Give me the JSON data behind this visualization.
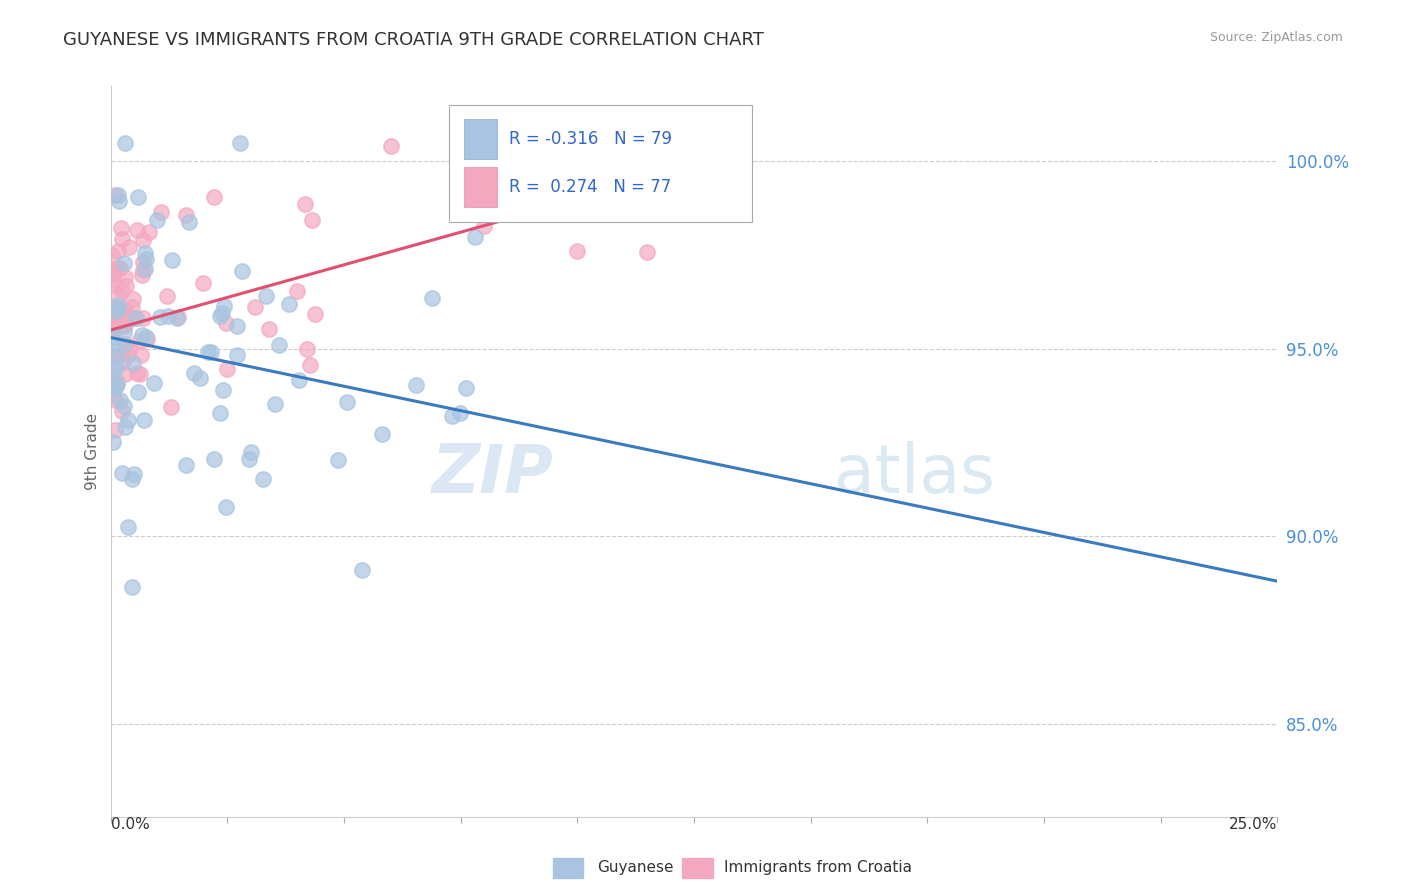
{
  "title": "GUYANESE VS IMMIGRANTS FROM CROATIA 9TH GRADE CORRELATION CHART",
  "source_text": "Source: ZipAtlas.com",
  "ylabel": "9th Grade",
  "xlim": [
    0.0,
    25.0
  ],
  "ylim": [
    82.5,
    102.0
  ],
  "yticks": [
    85.0,
    90.0,
    95.0,
    100.0
  ],
  "ytick_labels": [
    "85.0%",
    "90.0%",
    "95.0%",
    "100.0%"
  ],
  "blue_R": -0.316,
  "blue_N": 79,
  "pink_R": 0.274,
  "pink_N": 77,
  "blue_color": "#a8c4e0",
  "pink_color": "#f4a8c0",
  "blue_line_color": "#3a7abf",
  "pink_line_color": "#e05070",
  "legend_blue_label": "Guyanese",
  "legend_pink_label": "Immigrants from Croatia",
  "watermark_zip": "ZIP",
  "watermark_atlas": "atlas",
  "blue_trend_x": [
    0.0,
    25.0
  ],
  "blue_trend_y": [
    95.3,
    88.8
  ],
  "pink_trend_x": [
    0.0,
    13.5
  ],
  "pink_trend_y": [
    95.5,
    100.2
  ]
}
